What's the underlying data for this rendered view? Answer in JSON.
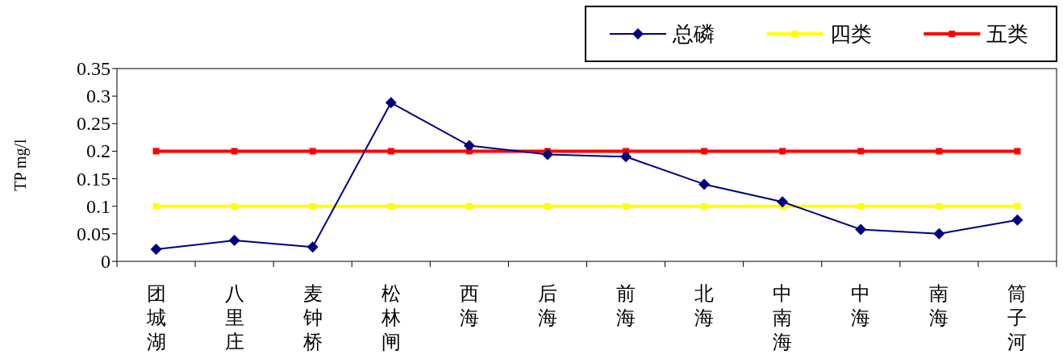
{
  "chart_data": {
    "type": "line",
    "ylabel": "TP mg/l",
    "categories": [
      "团城湖",
      "八里庄",
      "麦钟桥",
      "松林闸",
      "西海",
      "后海",
      "前海",
      "北海",
      "中南海",
      "中海",
      "南海",
      "筒子河"
    ],
    "series": [
      {
        "name": "总磷",
        "color": "#000080",
        "marker": "diamond",
        "values": [
          0.022,
          0.038,
          0.026,
          0.288,
          0.21,
          0.194,
          0.19,
          0.14,
          0.108,
          0.058,
          0.05,
          0.075
        ]
      },
      {
        "name": "四类",
        "color": "#ffff00",
        "marker": "square",
        "values": [
          0.1,
          0.1,
          0.1,
          0.1,
          0.1,
          0.1,
          0.1,
          0.1,
          0.1,
          0.1,
          0.1,
          0.1
        ]
      },
      {
        "name": "五类",
        "color": "#ff0000",
        "marker": "square",
        "values": [
          0.2,
          0.2,
          0.2,
          0.2,
          0.2,
          0.2,
          0.2,
          0.2,
          0.2,
          0.2,
          0.2,
          0.2
        ]
      }
    ],
    "ylim": [
      0,
      0.35
    ],
    "yticks": [
      0,
      0.05,
      0.1,
      0.15,
      0.2,
      0.25,
      0.3,
      0.35
    ],
    "grid": false,
    "legend": "top right"
  }
}
